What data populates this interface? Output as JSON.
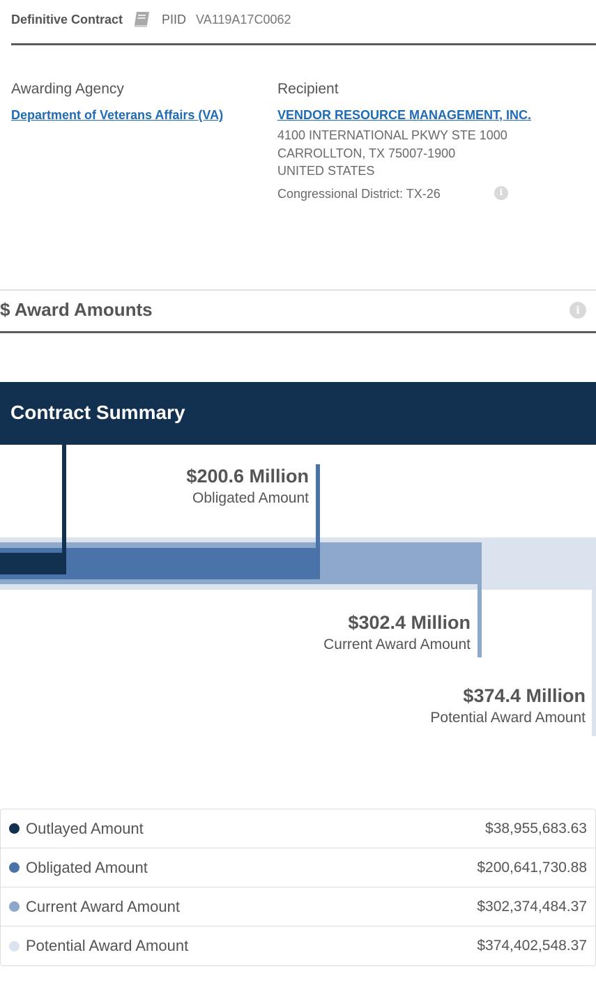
{
  "header": {
    "award_type": "Definitive Contract",
    "piid_label": "PIID",
    "piid": "VA119A17C0062"
  },
  "agency": {
    "title": "Awarding Agency",
    "name": "Department of Veterans Affairs (VA)"
  },
  "recipient": {
    "title": "Recipient",
    "name": "VENDOR RESOURCE MANAGEMENT, INC.",
    "address_line1": "4100 INTERNATIONAL PKWY STE 1000",
    "address_line2": "CARROLLTON, TX 75007-1900",
    "country": "UNITED STATES",
    "district": "Congressional District: TX-26"
  },
  "award_amounts": {
    "title": "$ Award Amounts"
  },
  "summary": {
    "title": "Contract Summary"
  },
  "chart": {
    "obligated": {
      "value": "$200.6 Million",
      "label": "Obligated Amount"
    },
    "current": {
      "value": "$302.4 Million",
      "label": "Current Award Amount"
    },
    "potential": {
      "value": "$374.4 Million",
      "label": "Potential Award Amount"
    }
  },
  "legend": [
    {
      "label": "Outlayed Amount",
      "value": "$38,955,683.63",
      "color": "#12304f"
    },
    {
      "label": "Obligated Amount",
      "value": "$200,641,730.88",
      "color": "#4a73aa"
    },
    {
      "label": "Current Award Amount",
      "value": "$302,374,484.37",
      "color": "#8ea8cb"
    },
    {
      "label": "Potential Award Amount",
      "value": "$374,402,548.37",
      "color": "#dbe3ee"
    }
  ],
  "colors": {
    "outlayed": "#12304f",
    "obligated": "#4a73aa",
    "current": "#8ea8cb",
    "potential": "#dbe3ee",
    "link": "#1f6bb4"
  }
}
